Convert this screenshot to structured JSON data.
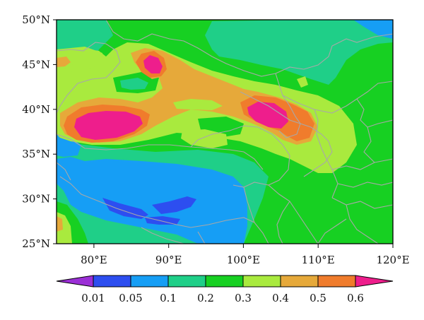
{
  "map": {
    "lat_labels": [
      "50°N",
      "45°N",
      "40°N",
      "35°N",
      "30°N",
      "25°N"
    ],
    "lon_labels": [
      "80°E",
      "90°E",
      "100°E",
      "110°E",
      "120°E"
    ],
    "lon_range": [
      75,
      120
    ],
    "lat_range": [
      25,
      50
    ]
  },
  "legend": {
    "levels": [
      "0.01",
      "0.05",
      "0.1",
      "0.2",
      "0.3",
      "0.4",
      "0.5",
      "0.6"
    ],
    "colors": [
      "#9b2fd6",
      "#2d4ef0",
      "#169ef5",
      "#1fcf88",
      "#17d022",
      "#a9ea3e",
      "#e6a93a",
      "#f07c2c",
      "#ee1e8c"
    ]
  },
  "field_colors": {
    "purple": "#9b2fd6",
    "blue": "#2d4ef0",
    "sky": "#169ef5",
    "teal": "#1fcf88",
    "green": "#17d022",
    "lime": "#a9ea3e",
    "gold": "#e6a93a",
    "orange": "#f07c2c",
    "magenta": "#ee1e8c",
    "border": "#a8a8a8"
  }
}
